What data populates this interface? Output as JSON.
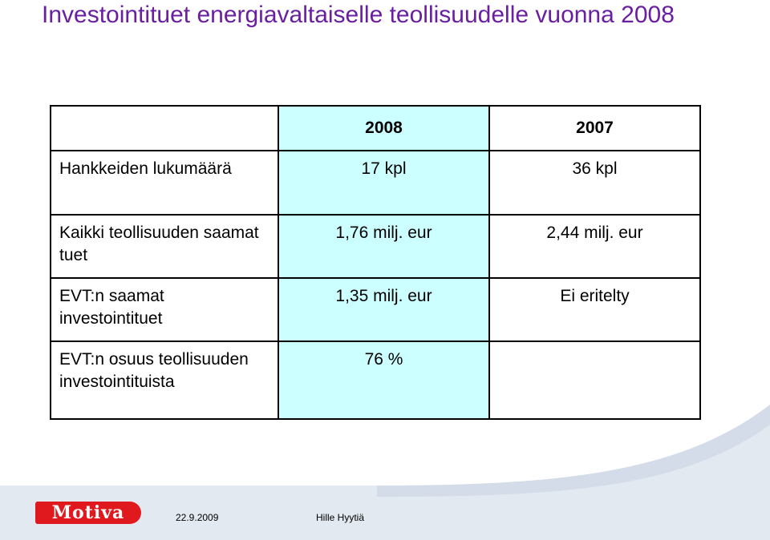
{
  "title": "Investointituet energiavaltaiselle teollisuudelle vuonna 2008",
  "table": {
    "headers": [
      "",
      "2008",
      "2007"
    ],
    "rows": [
      {
        "label": "Hankkeiden lukumäärä",
        "v2008": "17 kpl",
        "v2007": "36 kpl"
      },
      {
        "label": "Kaikki teollisuuden saamat tuet",
        "v2008": "1,76 milj. eur",
        "v2007": "2,44 milj. eur"
      },
      {
        "label": "EVT:n saamat investointituet",
        "v2008": "1,35 milj. eur",
        "v2007": "Ei eritelty"
      },
      {
        "label": "EVT:n osuus teollisuuden investointituista",
        "v2008": "76 %",
        "v2007": ""
      }
    ]
  },
  "colors": {
    "title": "#6a1fa0",
    "highlight_column": "#ccffff",
    "logo": "#e0191e",
    "footer_band": "#e3e9f1"
  },
  "footer": {
    "logo": "Motiva",
    "date": "22.9.2009",
    "author": "Hille Hyytiä"
  }
}
